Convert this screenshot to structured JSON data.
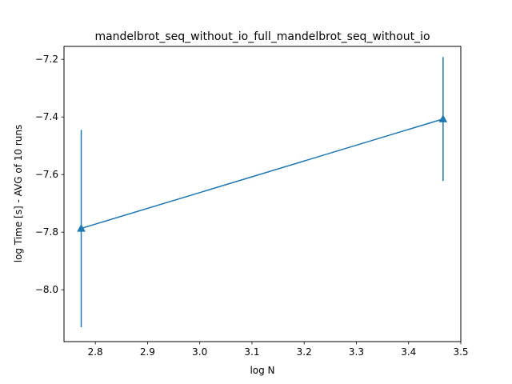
{
  "chart_data": {
    "type": "line",
    "title": "mandelbrot_seq_without_io_full_mandelbrot_seq_without_io",
    "xlabel": "log N",
    "ylabel": "log Time  [s] - AVG of 10 runs",
    "xlim": [
      2.74,
      3.5
    ],
    "ylim": [
      -8.18,
      -7.155
    ],
    "xticks": [
      2.8,
      2.9,
      3.0,
      3.1,
      3.2,
      3.3,
      3.4,
      3.5
    ],
    "xtick_labels": [
      "2.8",
      "2.9",
      "3.0",
      "3.1",
      "3.2",
      "3.3",
      "3.4",
      "3.5"
    ],
    "yticks": [
      -8.0,
      -7.8,
      -7.6,
      -7.4,
      -7.2
    ],
    "ytick_labels": [
      "−8.0",
      "−7.8",
      "−7.6",
      "−7.4",
      "−7.2"
    ],
    "grid": false,
    "series": [
      {
        "color": "#1f77b4",
        "marker": "triangle-up",
        "x": [
          2.773,
          3.466
        ],
        "y": [
          -7.787,
          -7.407
        ],
        "yerr_low": [
          -8.13,
          -7.622
        ],
        "yerr_high": [
          -7.445,
          -7.192
        ]
      }
    ]
  }
}
